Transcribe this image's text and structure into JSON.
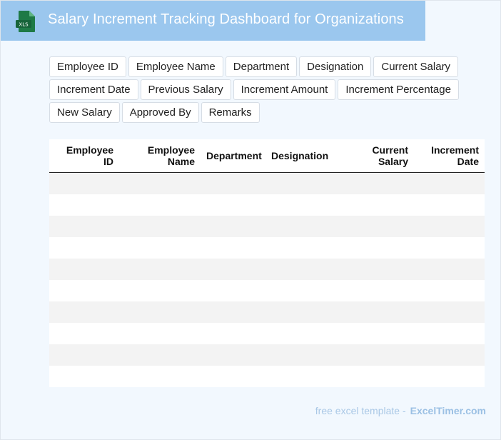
{
  "header": {
    "title": "Salary Increment Tracking Dashboard for Organizations",
    "icon_label": "XLS",
    "color": "#9bc7ee"
  },
  "columns": [
    "Employee ID",
    "Employee Name",
    "Department",
    "Designation",
    "Current Salary",
    "Increment Date",
    "Previous Salary",
    "Increment Amount",
    "Increment Percentage",
    "New Salary",
    "Approved By",
    "Remarks"
  ],
  "table": {
    "headers": [
      "Employee ID",
      "Employee Name",
      "Department",
      "Designation",
      "Current Salary",
      "Increment Date"
    ],
    "rows": [
      [
        "",
        "",
        "",
        "",
        "",
        ""
      ],
      [
        "",
        "",
        "",
        "",
        "",
        ""
      ],
      [
        "",
        "",
        "",
        "",
        "",
        ""
      ],
      [
        "",
        "",
        "",
        "",
        "",
        ""
      ],
      [
        "",
        "",
        "",
        "",
        "",
        ""
      ],
      [
        "",
        "",
        "",
        "",
        "",
        ""
      ],
      [
        "",
        "",
        "",
        "",
        "",
        ""
      ],
      [
        "",
        "",
        "",
        "",
        "",
        ""
      ],
      [
        "",
        "",
        "",
        "",
        "",
        ""
      ],
      [
        "",
        "",
        "",
        "",
        "",
        ""
      ]
    ]
  },
  "footer": {
    "prefix": "free excel template -",
    "brand": "ExcelTimer.com"
  }
}
